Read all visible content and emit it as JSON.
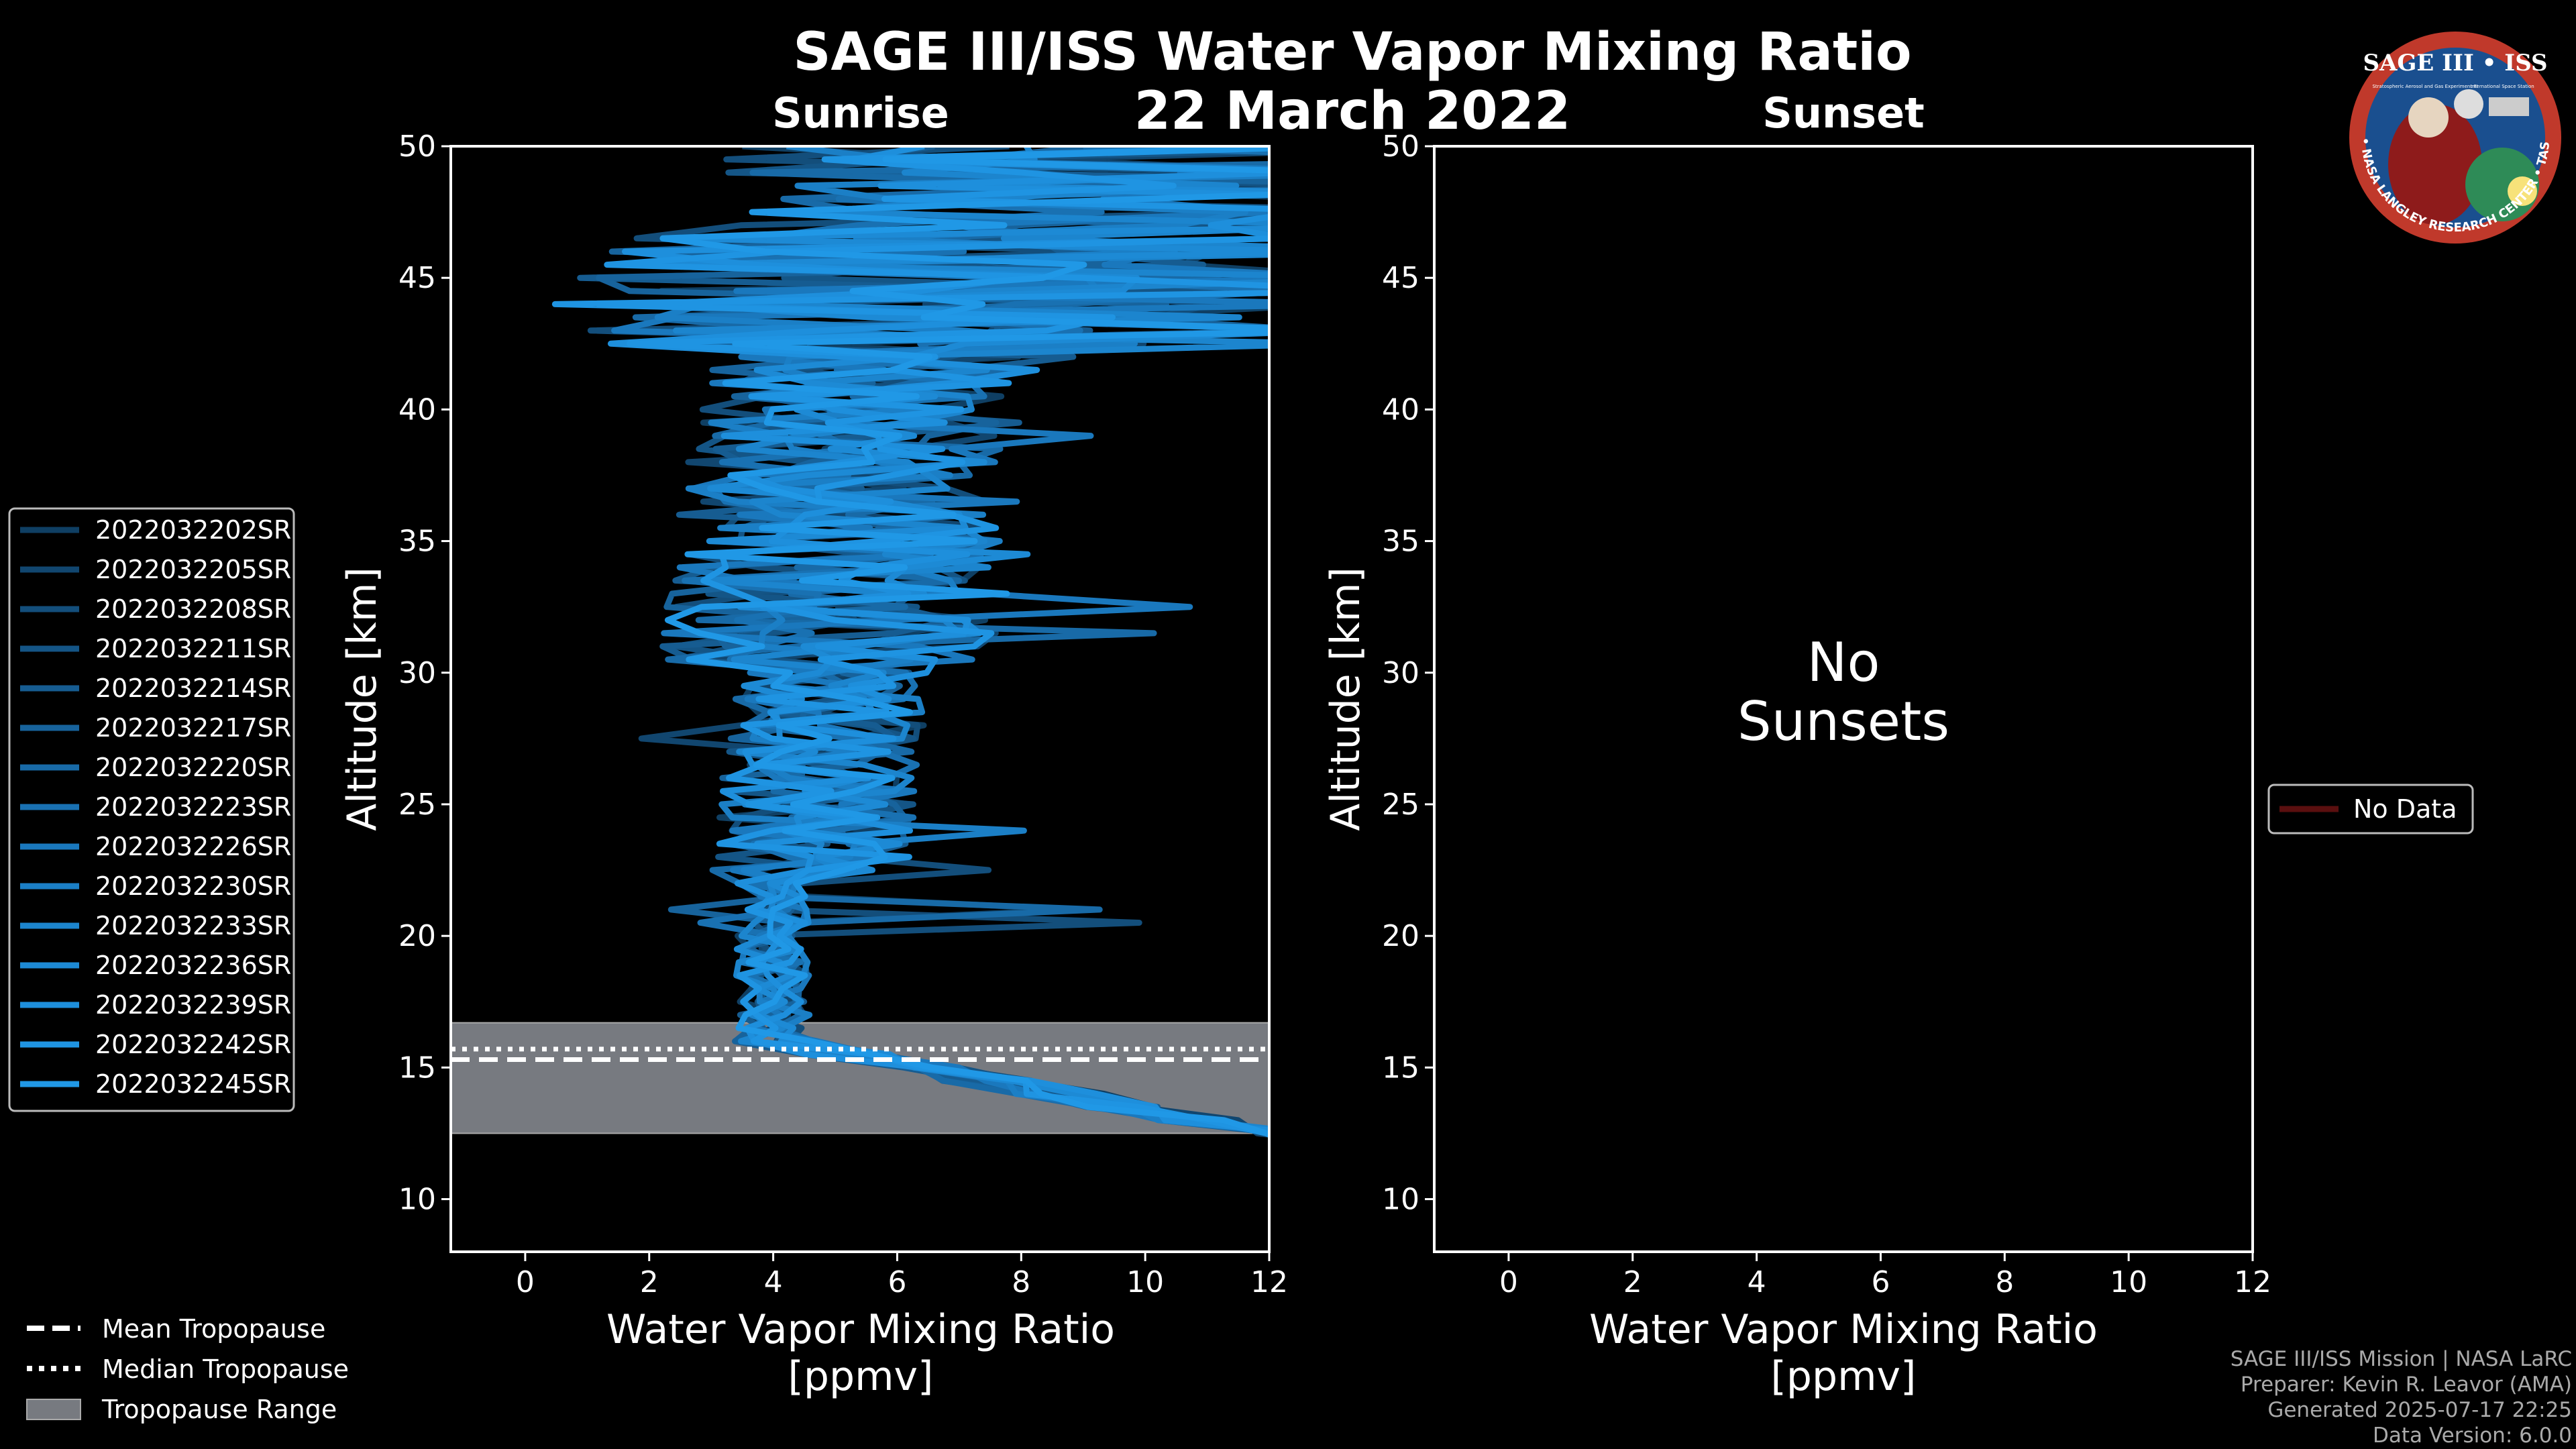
{
  "title": "SAGE III/ISS Water Vapor Mixing Ratio",
  "date": "22 March 2022",
  "logo": {
    "top": "SAGE III • ISS",
    "sub_left": "Stratospheric Aerosol and Gas Experiment III",
    "sub_right": "International Space Station",
    "ring": "BALL • NASA LANGLEY RESEARCH CENTER • TAS • ESA",
    "ring_color": "#c0392b",
    "bg_color": "#1a4f8f"
  },
  "footer": {
    "line1": "SAGE III/ISS Mission | NASA LaRC",
    "line2": "Preparer: Kevin R. Leavor (AMA)",
    "line3": "Generated 2025-07-17 22:25",
    "line4": "Data Version: 6.0.0"
  },
  "bottom_legend": [
    {
      "label": "Mean Tropopause",
      "style": "dashed"
    },
    {
      "label": "Median Tropopause",
      "style": "dotted"
    },
    {
      "label": "Tropopause Range",
      "style": "patch"
    }
  ],
  "chart_data": [
    {
      "type": "line",
      "subtitle": "Sunrise",
      "xlabel": "Water Vapor Mixing Ratio\n[ppmv]",
      "ylabel": "Altitude [km]",
      "xlim": [
        -1.2,
        12
      ],
      "ylim": [
        8,
        50
      ],
      "xticks": [
        0,
        2,
        4,
        6,
        8,
        10,
        12
      ],
      "yticks": [
        10,
        15,
        20,
        25,
        30,
        35,
        40,
        45,
        50
      ],
      "grid": false,
      "tropopause": {
        "mean": 15.3,
        "median": 15.7,
        "range": [
          12.5,
          16.7
        ]
      },
      "legend_position": "left",
      "series": [
        {
          "name": "2022032202SR",
          "color": "#0f3f63"
        },
        {
          "name": "2022032205SR",
          "color": "#11466f"
        },
        {
          "name": "2022032208SR",
          "color": "#134e7b"
        },
        {
          "name": "2022032211SR",
          "color": "#145586"
        },
        {
          "name": "2022032214SR",
          "color": "#165c91"
        },
        {
          "name": "2022032217SR",
          "color": "#17639c"
        },
        {
          "name": "2022032220SR",
          "color": "#186aa7"
        },
        {
          "name": "2022032223SR",
          "color": "#1971b2"
        },
        {
          "name": "2022032226SR",
          "color": "#1a78bd"
        },
        {
          "name": "2022032230SR",
          "color": "#1b7fc6"
        },
        {
          "name": "2022032233SR",
          "color": "#1c85ce"
        },
        {
          "name": "2022032236SR",
          "color": "#1d8ad5"
        },
        {
          "name": "2022032239SR",
          "color": "#1e8fdc"
        },
        {
          "name": "2022032242SR",
          "color": "#1f94e2"
        },
        {
          "name": "2022032245SR",
          "color": "#2098e6"
        }
      ]
    },
    {
      "type": "line",
      "subtitle": "Sunset",
      "xlabel": "Water Vapor Mixing Ratio\n[ppmv]",
      "ylabel": "Altitude [km]",
      "xlim": [
        -1.2,
        12
      ],
      "ylim": [
        8,
        50
      ],
      "xticks": [
        0,
        2,
        4,
        6,
        8,
        10,
        12
      ],
      "yticks": [
        10,
        15,
        20,
        25,
        30,
        35,
        40,
        45,
        50
      ],
      "grid": false,
      "annotation": "No\nSunsets",
      "legend_position": "right",
      "series": [
        {
          "name": "No Data",
          "color": "#5a0f0f"
        }
      ]
    }
  ]
}
